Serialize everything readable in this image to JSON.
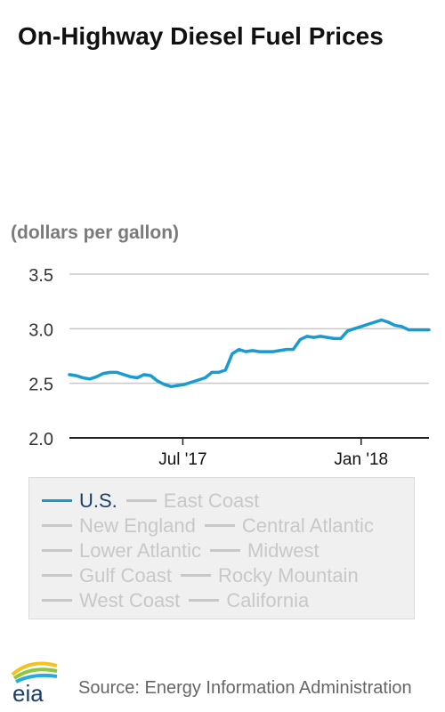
{
  "title": "On-Highway Diesel Fuel Prices",
  "units": "(dollars per gallon)",
  "source": "Source: Energy Information Administration",
  "logo_text": "eia",
  "colors": {
    "active_series": "#189ad3",
    "inactive": "#c8c8c8",
    "grid": "#c8c8c8",
    "axis": "#222222"
  },
  "legend": {
    "rows": [
      [
        {
          "label": "U.S.",
          "active": true
        },
        {
          "label": "East Coast",
          "active": false
        }
      ],
      [
        {
          "label": "New England",
          "active": false
        },
        {
          "label": "Central Atlantic",
          "active": false
        }
      ],
      [
        {
          "label": "Lower Atlantic",
          "active": false
        },
        {
          "label": "Midwest",
          "active": false
        }
      ],
      [
        {
          "label": "Gulf Coast",
          "active": false
        },
        {
          "label": "Rocky Mountain",
          "active": false
        }
      ],
      [
        {
          "label": "West Coast",
          "active": false
        },
        {
          "label": "California",
          "active": false
        }
      ]
    ]
  },
  "chart_data": {
    "type": "line",
    "ylabel": "(dollars per gallon)",
    "ylim": [
      2.0,
      3.5
    ],
    "yticks": [
      2.0,
      2.5,
      3.0,
      3.5
    ],
    "ytick_labels": [
      "2.0",
      "2.5",
      "3.0",
      "3.5"
    ],
    "xlim": [
      "2017-03-06",
      "2018-03-12"
    ],
    "xticks": [
      {
        "date": "2017-07-01",
        "label": "Jul '17"
      },
      {
        "date": "2018-01-01",
        "label": "Jan '18"
      }
    ],
    "grid": true,
    "legend_position": "bottom",
    "series": [
      {
        "name": "U.S.",
        "x": [
          "2017-03-06",
          "2017-03-13",
          "2017-03-20",
          "2017-03-27",
          "2017-04-03",
          "2017-04-10",
          "2017-04-17",
          "2017-04-24",
          "2017-05-01",
          "2017-05-08",
          "2017-05-15",
          "2017-05-22",
          "2017-05-29",
          "2017-06-05",
          "2017-06-12",
          "2017-06-19",
          "2017-06-26",
          "2017-07-03",
          "2017-07-10",
          "2017-07-17",
          "2017-07-24",
          "2017-07-31",
          "2017-08-07",
          "2017-08-14",
          "2017-08-21",
          "2017-08-28",
          "2017-09-04",
          "2017-09-11",
          "2017-09-18",
          "2017-09-25",
          "2017-10-02",
          "2017-10-09",
          "2017-10-16",
          "2017-10-23",
          "2017-10-30",
          "2017-11-06",
          "2017-11-13",
          "2017-11-20",
          "2017-11-27",
          "2017-12-04",
          "2017-12-11",
          "2017-12-18",
          "2017-12-25",
          "2018-01-01",
          "2018-01-08",
          "2018-01-15",
          "2018-01-22",
          "2018-01-29",
          "2018-02-05",
          "2018-02-12",
          "2018-02-19",
          "2018-02-26",
          "2018-03-05",
          "2018-03-12"
        ],
        "values": [
          2.58,
          2.57,
          2.55,
          2.54,
          2.56,
          2.59,
          2.6,
          2.6,
          2.58,
          2.56,
          2.55,
          2.58,
          2.57,
          2.52,
          2.49,
          2.47,
          2.48,
          2.49,
          2.51,
          2.53,
          2.55,
          2.6,
          2.6,
          2.62,
          2.77,
          2.81,
          2.79,
          2.8,
          2.79,
          2.79,
          2.79,
          2.8,
          2.81,
          2.81,
          2.9,
          2.93,
          2.92,
          2.93,
          2.92,
          2.91,
          2.91,
          2.98,
          3.0,
          3.02,
          3.04,
          3.06,
          3.08,
          3.06,
          3.03,
          3.02,
          2.99,
          2.99,
          2.99,
          2.99
        ]
      }
    ]
  }
}
